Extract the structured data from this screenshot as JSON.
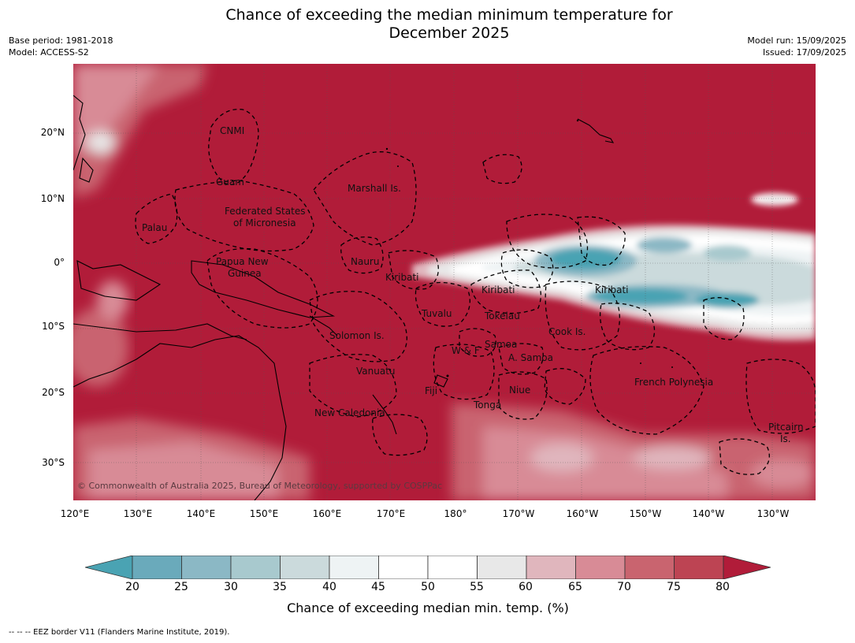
{
  "title_line1": "Chance of exceeding the median minimum temperature for",
  "title_line2": "December 2025",
  "meta_left": [
    "Base period: 1981-2018",
    "Model: ACCESS-S2"
  ],
  "meta_right": [
    "Model run: 15/09/2025",
    "Issued: 17/09/2025"
  ],
  "lon_ticks": [
    "120°E",
    "130°E",
    "140°E",
    "150°E",
    "160°E",
    "170°E",
    "180°",
    "170°W",
    "160°W",
    "150°W",
    "140°W",
    "130°W"
  ],
  "lat_ticks": [
    "20°N",
    "10°N",
    "0°",
    "10°S",
    "20°S",
    "30°S"
  ],
  "regions": [
    "CNMI",
    "Guam",
    "Marshall Is.",
    "Federated States",
    "of Micronesia",
    "Palau",
    "Papua New",
    "Guinea",
    "Nauru",
    "Kiribati",
    "Kiribati",
    "Kiribati",
    "Tuvalu",
    "Tokelau",
    "Cook Is.",
    "Solomon Is.",
    "W & F",
    "Samoa",
    "A. Samoa",
    "Vanuatu",
    "Fiji",
    "Niue",
    "Tonga",
    "French Polynesia",
    "New Caledonia",
    "Pitcairn",
    "Is."
  ],
  "copyright": "© Commonwealth of Australia 2025, Bureau of Meteorology, supported by COSPPac",
  "colorbar": {
    "ticks": [
      "20",
      "25",
      "30",
      "35",
      "40",
      "45",
      "50",
      "55",
      "60",
      "65",
      "70",
      "75",
      "80"
    ],
    "label": "Chance of exceeding median min. temp. (%)",
    "colors": [
      "#4aa3b3",
      "#6aaabb",
      "#8bb8c5",
      "#a8c9ce",
      "#cbdadc",
      "#eef3f4",
      "#ffffff",
      "#ffffff",
      "#e8e8e8",
      "#e0b6bd",
      "#d88b96",
      "#c9646f",
      "#bd4453",
      "#b11c39"
    ]
  },
  "footnote": "--  --  -- EEZ border V11 (Flanders Marine Institute, 2019)."
}
